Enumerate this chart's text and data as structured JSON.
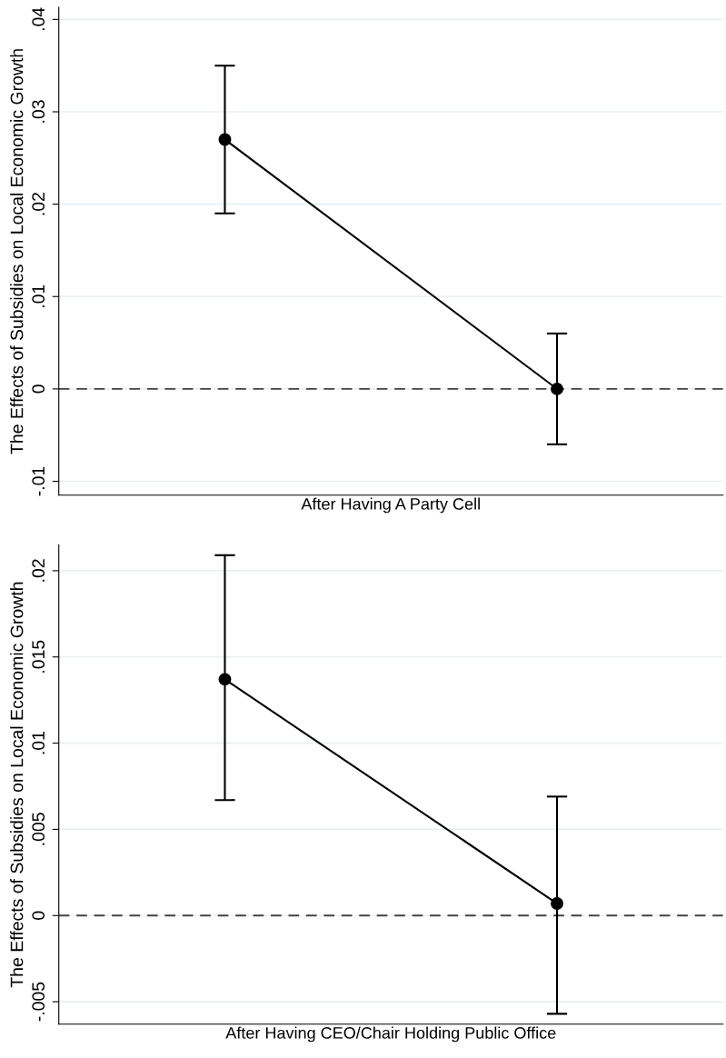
{
  "chart_data": [
    {
      "type": "line",
      "xlabel": "After Having A Party Cell",
      "ylabel": "The Effects of Subsidies on Local Economic Growth",
      "categories": [
        null,
        null
      ],
      "series": [
        {
          "color": "#000000",
          "values": [
            0.027,
            0.0
          ],
          "errors": [
            [
              0.019,
              0.035
            ],
            [
              -0.006,
              0.006
            ]
          ]
        }
      ],
      "ylim": [
        -0.0115,
        0.0413
      ],
      "yticks": [
        {
          "value": -0.01,
          "label": "-.01"
        },
        {
          "value": 0,
          "label": "0"
        },
        {
          "value": 0.01,
          "label": ".01"
        },
        {
          "value": 0.02,
          "label": ".02"
        },
        {
          "value": 0.03,
          "label": ".03"
        },
        {
          "value": 0.04,
          "label": ".04"
        }
      ],
      "ref_lines": [
        {
          "axis": "y",
          "value": 0,
          "color": "#444444",
          "line_style": "dashed"
        }
      ],
      "grid": "y",
      "marker": "circle",
      "line_style": "solid",
      "tick_labels": "y"
    },
    {
      "type": "line",
      "xlabel": "After Having CEO/Chair Holding Public Office",
      "ylabel": "The Effects of Subsidies on Local Economic Growth",
      "categories": [
        null,
        null
      ],
      "series": [
        {
          "color": "#000000",
          "values": [
            0.0137,
            0.0007
          ],
          "errors": [
            [
              0.0067,
              0.0209
            ],
            [
              -0.0057,
              0.0069
            ]
          ]
        }
      ],
      "ylim": [
        -0.0063,
        0.0215
      ],
      "yticks": [
        {
          "value": -0.005,
          "label": "-.005"
        },
        {
          "value": 0,
          "label": "0"
        },
        {
          "value": 0.005,
          "label": ".005"
        },
        {
          "value": 0.01,
          "label": ".01"
        },
        {
          "value": 0.015,
          "label": ".015"
        },
        {
          "value": 0.02,
          "label": ".02"
        }
      ],
      "ref_lines": [
        {
          "axis": "y",
          "value": 0,
          "color": "#444444",
          "line_style": "dashed"
        }
      ],
      "grid": "y",
      "marker": "circle",
      "line_style": "solid",
      "tick_labels": "y"
    }
  ]
}
